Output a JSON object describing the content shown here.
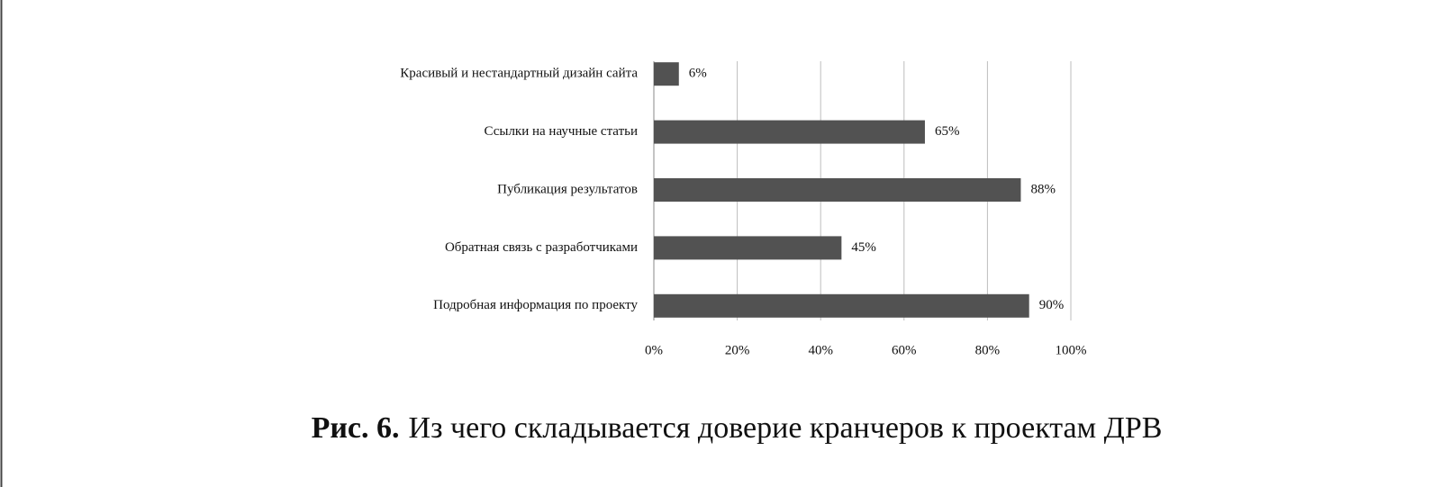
{
  "chart_data": {
    "type": "barh",
    "categories": [
      "Красивый и нестандартный дизайн сайта",
      "Ссылки на научные статьи",
      "Публикация результатов",
      "Обратная связь с разработчиками",
      "Подробная информация по проекту"
    ],
    "values": [
      6,
      65,
      88,
      45,
      90
    ],
    "value_labels": [
      "6%",
      "65%",
      "88%",
      "45%",
      "90%"
    ],
    "color": "#525252",
    "xlim": [
      0,
      100
    ],
    "xticks": [
      {
        "value": 0,
        "label": "0%"
      },
      {
        "value": 20,
        "label": "20%"
      },
      {
        "value": 40,
        "label": "40%"
      },
      {
        "value": 60,
        "label": "60%"
      },
      {
        "value": 80,
        "label": "80%"
      },
      {
        "value": 100,
        "label": "100%"
      }
    ],
    "grid": true,
    "figure_label": "Рис. 6.",
    "caption": "Из чего складывается доверие кранчеров к проектам ДРВ"
  }
}
